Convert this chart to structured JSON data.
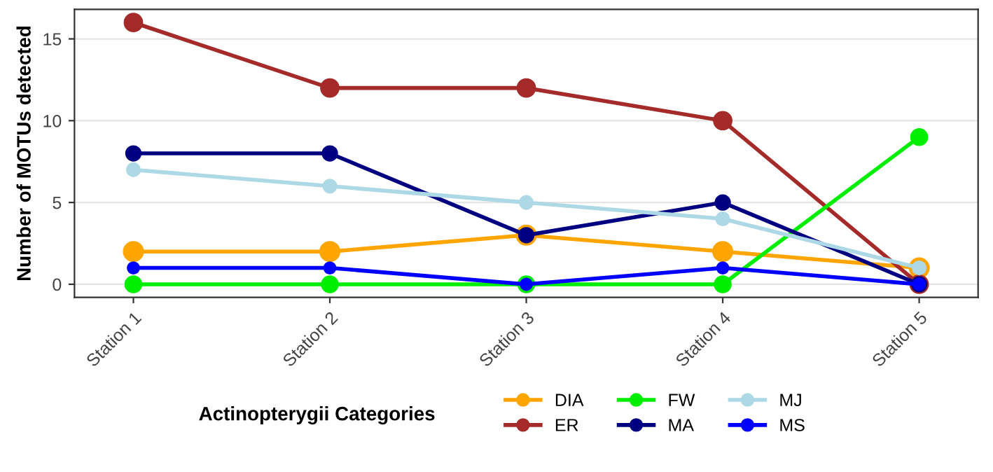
{
  "chart_data": {
    "type": "line",
    "ylabel": "Number of MOTUs detected",
    "legend_title": "Actinopterygii Categories",
    "categories": [
      "Station 1",
      "Station 2",
      "Station 3",
      "Station 4",
      "Station 5"
    ],
    "series": [
      {
        "name": "DIA",
        "color": "#ffa500",
        "values": [
          2,
          2,
          3,
          2,
          1
        ]
      },
      {
        "name": "ER",
        "color": "#a52a2a",
        "values": [
          16,
          12,
          12,
          10,
          0
        ]
      },
      {
        "name": "FW",
        "color": "#00ee00",
        "values": [
          0,
          0,
          0,
          0,
          9
        ]
      },
      {
        "name": "MA",
        "color": "#000080",
        "values": [
          8,
          8,
          3,
          5,
          0
        ]
      },
      {
        "name": "MJ",
        "color": "#add8e6",
        "values": [
          7,
          6,
          5,
          4,
          1
        ]
      },
      {
        "name": "MS",
        "color": "#0000ff",
        "values": [
          1,
          1,
          0,
          1,
          0
        ]
      }
    ],
    "ylim": [
      -0.8,
      16.8
    ],
    "yticks": [
      0,
      5,
      10,
      15
    ],
    "grid": "y",
    "legend": "bottom",
    "marker": "circle",
    "line_style": "solid"
  }
}
